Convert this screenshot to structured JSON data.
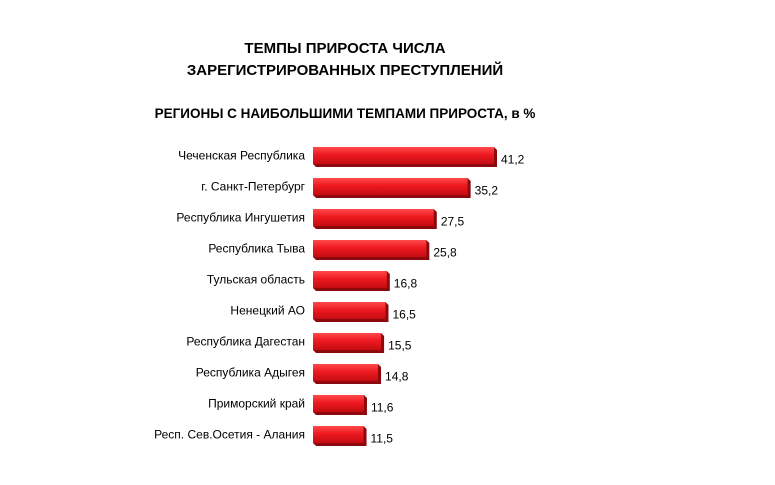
{
  "chart_data": {
    "type": "bar",
    "orientation": "horizontal",
    "title": "ТЕМПЫ ПРИРОСТА ЧИСЛА ЗАРЕГИСТРИРОВАННЫХ ПРЕСТУПЛЕНИЙ",
    "title_lines": [
      "ТЕМПЫ ПРИРОСТА ЧИСЛА",
      "ЗАРЕГИСТРИРОВАННЫХ ПРЕСТУПЛЕНИЙ"
    ],
    "subtitle": "РЕГИОНЫ С НАИБОЛЬШИМИ ТЕМПАМИ ПРИРОСТА, в %",
    "categories": [
      "Чеченская Республика",
      "г. Санкт-Петербург",
      "Республика Ингушетия",
      "Республика Тыва",
      "Тульская область",
      "Ненецкий АО",
      "Республика Дагестан",
      "Республика Адыгея",
      "Приморский край",
      "Респ. Сев.Осетия - Алания"
    ],
    "values": [
      41.2,
      35.2,
      27.5,
      25.8,
      16.8,
      16.5,
      15.5,
      14.8,
      11.6,
      11.5
    ],
    "value_labels": [
      "41,2",
      "35,2",
      "27,5",
      "25,8",
      "16,8",
      "16,5",
      "15,5",
      "14,8",
      "11,6",
      "11,5"
    ],
    "xlim": [
      0,
      41.2
    ],
    "bar_color": "#e8141c",
    "bar_shadow_color": "#8c0a0e",
    "grid": false,
    "legend": "none"
  }
}
